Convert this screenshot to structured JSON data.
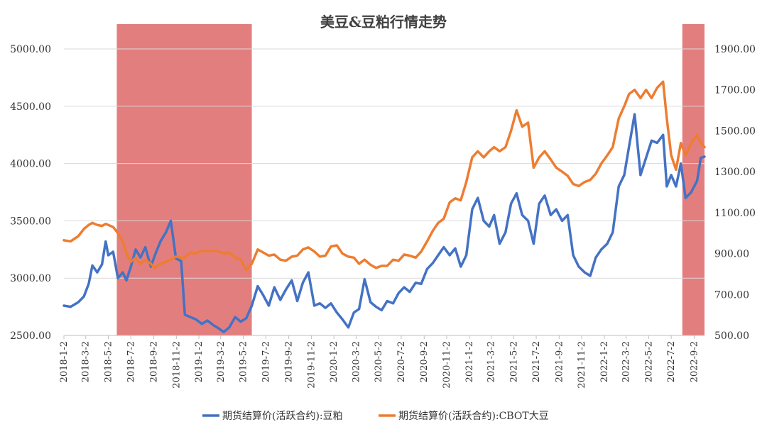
{
  "chart_data": {
    "type": "line",
    "title": "美豆&豆粕行情走势",
    "x_categories": [
      "2018-1-2",
      "2018-3-2",
      "2018-5-2",
      "2018-7-2",
      "2018-9-2",
      "2018-11-2",
      "2019-1-2",
      "2019-3-2",
      "2019-5-2",
      "2019-7-2",
      "2019-9-2",
      "2019-11-2",
      "2020-1-2",
      "2020-3-2",
      "2020-5-2",
      "2020-7-2",
      "2020-9-2",
      "2020-11-2",
      "2021-1-2",
      "2021-3-2",
      "2021-5-2",
      "2021-7-2",
      "2021-9-2",
      "2021-11-2",
      "2022-1-2",
      "2022-3-2",
      "2022-5-2",
      "2022-7-2",
      "2022-9-2"
    ],
    "y_left": {
      "min": 2500,
      "max": 5000,
      "ticks": [
        "2500.00",
        "3000.00",
        "3500.00",
        "4000.00",
        "4500.00",
        "5000.00"
      ]
    },
    "y_right": {
      "min": 500,
      "max": 1900,
      "ticks": [
        "500.00",
        "700.00",
        "900.00",
        "1100.00",
        "1300.00",
        "1500.00",
        "1700.00",
        "1900.00"
      ]
    },
    "grid": true,
    "legend_position": "bottom",
    "shaded_periods": [
      {
        "start": "2018-5-25",
        "end": "2019-5-25",
        "color": "#d95353"
      },
      {
        "start": "2022-8-1",
        "end": "2022-9-30",
        "color": "#d95353"
      }
    ],
    "series": [
      {
        "name": "期货结算价(活跃合约):豆粕",
        "axis": "left",
        "color": "#4472c4",
        "points": [
          [
            "2018-1-2",
            2760
          ],
          [
            "2018-1-20",
            2750
          ],
          [
            "2018-2-10",
            2790
          ],
          [
            "2018-2-25",
            2840
          ],
          [
            "2018-3-10",
            2950
          ],
          [
            "2018-3-20",
            3110
          ],
          [
            "2018-4-2",
            3050
          ],
          [
            "2018-4-15",
            3120
          ],
          [
            "2018-4-25",
            3320
          ],
          [
            "2018-5-2",
            3200
          ],
          [
            "2018-5-15",
            3230
          ],
          [
            "2018-5-28",
            3000
          ],
          [
            "2018-6-10",
            3050
          ],
          [
            "2018-6-20",
            2980
          ],
          [
            "2018-7-2",
            3100
          ],
          [
            "2018-7-15",
            3250
          ],
          [
            "2018-7-28",
            3180
          ],
          [
            "2018-8-10",
            3270
          ],
          [
            "2018-8-25",
            3100
          ],
          [
            "2018-9-5",
            3200
          ],
          [
            "2018-9-20",
            3320
          ],
          [
            "2018-10-5",
            3400
          ],
          [
            "2018-10-18",
            3500
          ],
          [
            "2018-11-1",
            3170
          ],
          [
            "2018-11-15",
            3150
          ],
          [
            "2018-11-25",
            2680
          ],
          [
            "2018-12-10",
            2660
          ],
          [
            "2018-12-25",
            2640
          ],
          [
            "2019-1-10",
            2600
          ],
          [
            "2019-1-25",
            2630
          ],
          [
            "2019-2-10",
            2590
          ],
          [
            "2019-2-25",
            2560
          ],
          [
            "2019-3-10",
            2530
          ],
          [
            "2019-3-25",
            2570
          ],
          [
            "2019-4-10",
            2660
          ],
          [
            "2019-4-25",
            2620
          ],
          [
            "2019-5-10",
            2650
          ],
          [
            "2019-5-25",
            2760
          ],
          [
            "2019-6-10",
            2930
          ],
          [
            "2019-6-25",
            2850
          ],
          [
            "2019-7-10",
            2760
          ],
          [
            "2019-7-25",
            2920
          ],
          [
            "2019-8-10",
            2810
          ],
          [
            "2019-8-25",
            2900
          ],
          [
            "2019-9-10",
            2980
          ],
          [
            "2019-9-25",
            2800
          ],
          [
            "2019-10-10",
            2960
          ],
          [
            "2019-10-25",
            3050
          ],
          [
            "2019-11-10",
            2760
          ],
          [
            "2019-11-25",
            2780
          ],
          [
            "2019-12-10",
            2740
          ],
          [
            "2019-12-25",
            2780
          ],
          [
            "2020-1-10",
            2700
          ],
          [
            "2020-1-25",
            2640
          ],
          [
            "2020-2-10",
            2570
          ],
          [
            "2020-2-25",
            2700
          ],
          [
            "2020-3-10",
            2730
          ],
          [
            "2020-3-25",
            2990
          ],
          [
            "2020-4-10",
            2790
          ],
          [
            "2020-4-25",
            2750
          ],
          [
            "2020-5-10",
            2720
          ],
          [
            "2020-5-25",
            2800
          ],
          [
            "2020-6-10",
            2780
          ],
          [
            "2020-6-25",
            2870
          ],
          [
            "2020-7-10",
            2920
          ],
          [
            "2020-7-25",
            2880
          ],
          [
            "2020-8-10",
            2960
          ],
          [
            "2020-8-25",
            2950
          ],
          [
            "2020-9-10",
            3080
          ],
          [
            "2020-9-25",
            3130
          ],
          [
            "2020-10-10",
            3200
          ],
          [
            "2020-10-25",
            3270
          ],
          [
            "2020-11-10",
            3200
          ],
          [
            "2020-11-25",
            3260
          ],
          [
            "2020-12-10",
            3100
          ],
          [
            "2020-12-25",
            3200
          ],
          [
            "2021-1-10",
            3600
          ],
          [
            "2021-1-25",
            3700
          ],
          [
            "2021-2-10",
            3500
          ],
          [
            "2021-2-25",
            3450
          ],
          [
            "2021-3-10",
            3550
          ],
          [
            "2021-3-25",
            3300
          ],
          [
            "2021-4-10",
            3400
          ],
          [
            "2021-4-25",
            3650
          ],
          [
            "2021-5-10",
            3740
          ],
          [
            "2021-5-25",
            3550
          ],
          [
            "2021-6-10",
            3500
          ],
          [
            "2021-6-25",
            3300
          ],
          [
            "2021-7-10",
            3650
          ],
          [
            "2021-7-25",
            3720
          ],
          [
            "2021-8-10",
            3550
          ],
          [
            "2021-8-25",
            3600
          ],
          [
            "2021-9-10",
            3500
          ],
          [
            "2021-9-25",
            3550
          ],
          [
            "2021-10-10",
            3200
          ],
          [
            "2021-10-25",
            3100
          ],
          [
            "2021-11-10",
            3050
          ],
          [
            "2021-11-25",
            3020
          ],
          [
            "2021-12-10",
            3180
          ],
          [
            "2021-12-25",
            3250
          ],
          [
            "2022-1-10",
            3300
          ],
          [
            "2022-1-25",
            3400
          ],
          [
            "2022-2-10",
            3800
          ],
          [
            "2022-2-25",
            3900
          ],
          [
            "2022-3-10",
            4150
          ],
          [
            "2022-3-25",
            4430
          ],
          [
            "2022-4-10",
            3900
          ],
          [
            "2022-4-25",
            4050
          ],
          [
            "2022-5-10",
            4200
          ],
          [
            "2022-5-25",
            4180
          ],
          [
            "2022-6-10",
            4250
          ],
          [
            "2022-6-20",
            3800
          ],
          [
            "2022-7-2",
            3900
          ],
          [
            "2022-7-15",
            3800
          ],
          [
            "2022-7-28",
            4000
          ],
          [
            "2022-8-10",
            3700
          ],
          [
            "2022-8-25",
            3750
          ],
          [
            "2022-9-10",
            3850
          ],
          [
            "2022-9-20",
            4050
          ],
          [
            "2022-9-30",
            4060
          ]
        ]
      },
      {
        "name": "期货结算价(活跃合约):CBOT大豆",
        "axis": "right",
        "color": "#ed7d31",
        "points": [
          [
            "2018-1-2",
            965
          ],
          [
            "2018-1-20",
            960
          ],
          [
            "2018-2-10",
            985
          ],
          [
            "2018-2-25",
            1020
          ],
          [
            "2018-3-10",
            1040
          ],
          [
            "2018-3-20",
            1050
          ],
          [
            "2018-4-2",
            1040
          ],
          [
            "2018-4-15",
            1035
          ],
          [
            "2018-4-25",
            1045
          ],
          [
            "2018-5-2",
            1040
          ],
          [
            "2018-5-15",
            1030
          ],
          [
            "2018-5-28",
            1000
          ],
          [
            "2018-6-10",
            960
          ],
          [
            "2018-6-20",
            900
          ],
          [
            "2018-7-2",
            860
          ],
          [
            "2018-7-15",
            880
          ],
          [
            "2018-7-28",
            850
          ],
          [
            "2018-8-10",
            870
          ],
          [
            "2018-8-25",
            850
          ],
          [
            "2018-9-5",
            830
          ],
          [
            "2018-9-20",
            850
          ],
          [
            "2018-10-5",
            860
          ],
          [
            "2018-10-18",
            870
          ],
          [
            "2018-11-1",
            885
          ],
          [
            "2018-11-15",
            880
          ],
          [
            "2018-11-25",
            880
          ],
          [
            "2018-12-10",
            905
          ],
          [
            "2018-12-25",
            900
          ],
          [
            "2019-1-10",
            915
          ],
          [
            "2019-1-25",
            910
          ],
          [
            "2019-2-10",
            915
          ],
          [
            "2019-2-25",
            910
          ],
          [
            "2019-3-10",
            900
          ],
          [
            "2019-3-25",
            905
          ],
          [
            "2019-4-10",
            880
          ],
          [
            "2019-4-25",
            870
          ],
          [
            "2019-5-10",
            820
          ],
          [
            "2019-5-25",
            850
          ],
          [
            "2019-6-10",
            920
          ],
          [
            "2019-6-25",
            905
          ],
          [
            "2019-7-10",
            890
          ],
          [
            "2019-7-25",
            895
          ],
          [
            "2019-8-10",
            870
          ],
          [
            "2019-8-25",
            865
          ],
          [
            "2019-9-10",
            885
          ],
          [
            "2019-9-25",
            890
          ],
          [
            "2019-10-10",
            920
          ],
          [
            "2019-10-25",
            930
          ],
          [
            "2019-11-10",
            910
          ],
          [
            "2019-11-25",
            885
          ],
          [
            "2019-12-10",
            890
          ],
          [
            "2019-12-25",
            935
          ],
          [
            "2020-1-10",
            940
          ],
          [
            "2020-1-25",
            900
          ],
          [
            "2020-2-10",
            885
          ],
          [
            "2020-2-25",
            880
          ],
          [
            "2020-3-10",
            850
          ],
          [
            "2020-3-25",
            870
          ],
          [
            "2020-4-10",
            845
          ],
          [
            "2020-4-25",
            830
          ],
          [
            "2020-5-10",
            840
          ],
          [
            "2020-5-25",
            840
          ],
          [
            "2020-6-10",
            870
          ],
          [
            "2020-6-25",
            865
          ],
          [
            "2020-7-10",
            895
          ],
          [
            "2020-7-25",
            890
          ],
          [
            "2020-8-10",
            880
          ],
          [
            "2020-8-25",
            910
          ],
          [
            "2020-9-10",
            960
          ],
          [
            "2020-9-25",
            1010
          ],
          [
            "2020-10-10",
            1050
          ],
          [
            "2020-10-25",
            1070
          ],
          [
            "2020-11-10",
            1150
          ],
          [
            "2020-11-25",
            1170
          ],
          [
            "2020-12-10",
            1160
          ],
          [
            "2020-12-25",
            1250
          ],
          [
            "2021-1-10",
            1370
          ],
          [
            "2021-1-25",
            1400
          ],
          [
            "2021-2-10",
            1370
          ],
          [
            "2021-2-25",
            1400
          ],
          [
            "2021-3-10",
            1420
          ],
          [
            "2021-3-25",
            1400
          ],
          [
            "2021-4-10",
            1420
          ],
          [
            "2021-4-25",
            1500
          ],
          [
            "2021-5-10",
            1600
          ],
          [
            "2021-5-25",
            1520
          ],
          [
            "2021-6-10",
            1540
          ],
          [
            "2021-6-25",
            1320
          ],
          [
            "2021-7-10",
            1370
          ],
          [
            "2021-7-25",
            1400
          ],
          [
            "2021-8-10",
            1360
          ],
          [
            "2021-8-25",
            1320
          ],
          [
            "2021-9-10",
            1300
          ],
          [
            "2021-9-25",
            1280
          ],
          [
            "2021-10-10",
            1240
          ],
          [
            "2021-10-25",
            1230
          ],
          [
            "2021-11-10",
            1250
          ],
          [
            "2021-11-25",
            1260
          ],
          [
            "2021-12-10",
            1290
          ],
          [
            "2021-12-25",
            1340
          ],
          [
            "2022-1-10",
            1380
          ],
          [
            "2022-1-25",
            1420
          ],
          [
            "2022-2-10",
            1560
          ],
          [
            "2022-2-25",
            1620
          ],
          [
            "2022-3-10",
            1680
          ],
          [
            "2022-3-25",
            1700
          ],
          [
            "2022-4-10",
            1660
          ],
          [
            "2022-4-25",
            1700
          ],
          [
            "2022-5-10",
            1660
          ],
          [
            "2022-5-25",
            1710
          ],
          [
            "2022-6-10",
            1740
          ],
          [
            "2022-6-20",
            1560
          ],
          [
            "2022-7-2",
            1380
          ],
          [
            "2022-7-15",
            1310
          ],
          [
            "2022-7-28",
            1440
          ],
          [
            "2022-8-10",
            1380
          ],
          [
            "2022-8-25",
            1440
          ],
          [
            "2022-9-10",
            1480
          ],
          [
            "2022-9-20",
            1440
          ],
          [
            "2022-9-30",
            1420
          ]
        ]
      }
    ]
  }
}
